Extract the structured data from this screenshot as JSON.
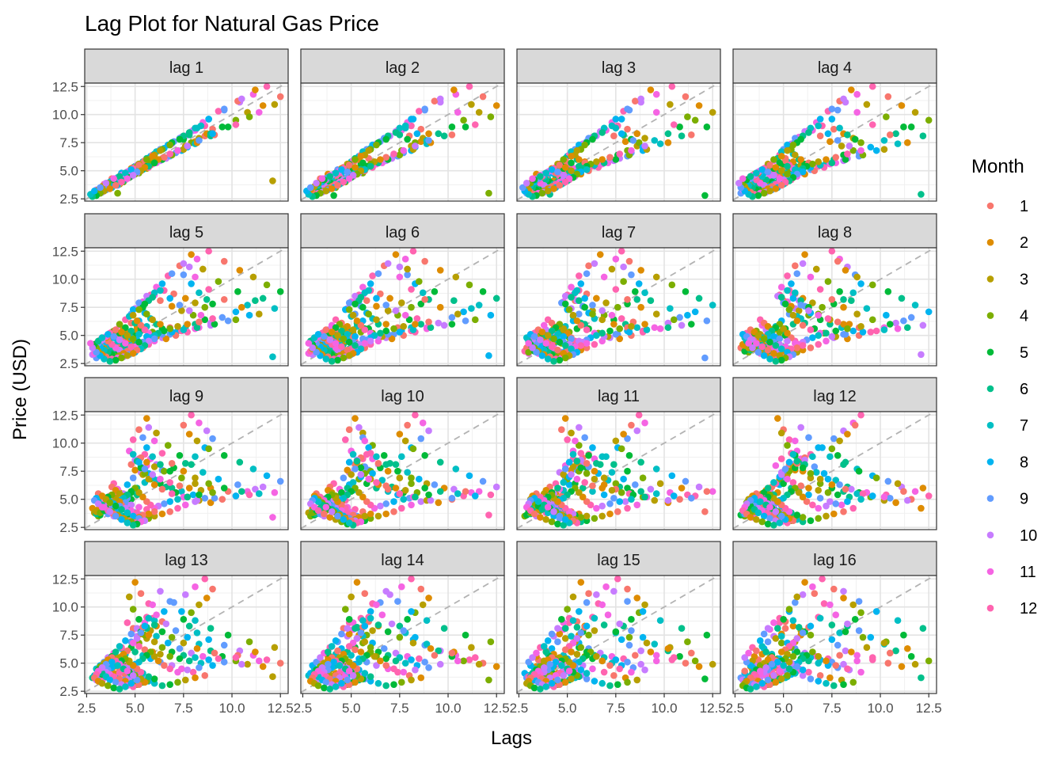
{
  "chart_data": {
    "type": "scatter",
    "title": "Lag Plot for Natural Gas Price",
    "xlabel": "Lags",
    "ylabel": "Price (USD)",
    "xlim": [
      2.4,
      12.9
    ],
    "ylim": [
      2.3,
      12.8
    ],
    "x_ticks": [
      2.5,
      5.0,
      7.5,
      10.0,
      12.5
    ],
    "x_tick_labels": [
      "2.5",
      "5.0",
      "7.5",
      "10.0",
      "12.5"
    ],
    "y_ticks": [
      2.5,
      5.0,
      7.5,
      10.0,
      12.5
    ],
    "y_tick_labels": [
      "2.5",
      "5.0",
      "7.5",
      "10.0",
      "12.5"
    ],
    "grid": true,
    "reference_line": "y = x, dashed grey",
    "panels": [
      "lag 1",
      "lag 2",
      "lag 3",
      "lag 4",
      "lag 5",
      "lag 6",
      "lag 7",
      "lag 8",
      "lag 9",
      "lag 10",
      "lag 11",
      "lag 12",
      "lag 13",
      "lag 14",
      "lag 15",
      "lag 16"
    ],
    "legend": {
      "title": "Month",
      "position": "right",
      "entries": [
        "1",
        "2",
        "3",
        "4",
        "5",
        "6",
        "7",
        "8",
        "9",
        "10",
        "11",
        "12"
      ],
      "colors": [
        "#F8766D",
        "#DE8C00",
        "#B79F00",
        "#7CAE00",
        "#00BA38",
        "#00C08B",
        "#00BFC4",
        "#00B4F0",
        "#619CFF",
        "#C77CFF",
        "#F564E3",
        "#FF64B0"
      ]
    },
    "series_month": [
      2,
      3,
      4,
      5,
      6,
      7,
      8,
      9,
      10,
      11,
      12,
      1,
      2,
      3,
      4,
      5,
      6,
      7,
      8,
      9,
      10,
      11,
      12,
      1,
      2,
      3,
      4,
      5,
      6,
      7,
      8,
      9,
      10,
      11,
      12,
      1,
      2,
      3,
      4,
      5,
      6,
      7,
      8,
      9,
      10,
      11,
      12,
      1,
      2,
      3,
      4,
      5,
      6,
      7,
      8,
      9,
      10,
      11,
      12,
      1,
      2,
      3,
      4,
      5,
      6,
      7,
      8,
      9,
      10,
      11,
      12,
      1,
      2,
      3,
      4,
      5,
      6,
      7,
      8,
      9,
      10,
      11,
      12,
      1,
      2,
      3,
      4,
      5,
      6,
      7,
      8,
      9,
      10,
      11,
      12,
      1,
      2,
      3,
      4,
      5,
      6,
      7,
      8,
      9,
      10,
      11,
      12,
      1,
      2,
      3,
      4,
      5,
      6,
      7,
      8,
      9,
      10,
      11,
      12,
      1,
      2,
      3,
      4,
      5,
      6,
      7,
      8,
      9,
      10,
      11,
      12,
      1,
      2,
      3,
      4,
      5,
      6,
      7,
      8,
      9,
      10,
      11,
      12,
      1,
      2,
      3,
      4,
      5,
      6,
      7,
      8,
      9,
      10,
      11,
      12,
      1,
      2,
      3,
      4,
      5,
      6,
      7,
      8,
      9,
      10,
      11,
      12,
      1,
      2,
      3,
      4,
      5,
      6,
      7,
      8,
      9,
      10,
      11,
      12,
      1,
      2,
      3,
      4,
      5,
      6,
      7,
      8,
      9,
      10,
      11,
      12,
      1,
      2,
      3,
      4,
      5,
      6,
      7,
      8,
      9,
      10,
      11,
      12,
      1,
      2,
      3,
      4,
      5,
      6,
      7,
      8,
      9,
      10,
      11,
      12,
      1,
      2,
      3,
      4,
      5,
      6,
      7,
      8,
      9,
      10,
      11,
      12,
      1,
      2,
      3,
      4,
      5,
      6,
      7,
      8,
      9,
      10,
      11,
      12,
      1,
      2,
      3,
      4,
      5,
      6,
      7,
      8,
      9,
      10,
      11,
      12,
      1,
      2,
      3,
      4,
      5,
      6,
      7,
      8,
      9,
      10,
      11,
      12,
      1,
      2,
      3,
      4,
      5,
      6,
      7,
      8,
      9,
      10,
      11,
      12,
      1,
      2,
      3,
      4,
      5,
      6,
      7,
      8,
      9,
      10,
      11
    ],
    "series_price": [
      12.1,
      4.1,
      3.0,
      2.8,
      2.9,
      3.1,
      3.2,
      3.0,
      3.3,
      3.4,
      3.6,
      3.9,
      4.2,
      3.8,
      3.5,
      3.6,
      3.7,
      3.9,
      4.1,
      3.7,
      3.5,
      3.4,
      3.8,
      4.3,
      4.7,
      4.4,
      4.0,
      4.2,
      4.5,
      4.3,
      4.8,
      5.1,
      4.9,
      4.6,
      4.9,
      5.3,
      5.6,
      5.2,
      4.8,
      5.0,
      5.4,
      5.8,
      6.3,
      6.9,
      7.4,
      8.0,
      8.6,
      8.1,
      7.6,
      7.2,
      6.8,
      6.4,
      6.0,
      5.7,
      5.4,
      5.1,
      4.8,
      4.5,
      4.2,
      3.9,
      3.7,
      3.5,
      3.3,
      3.1,
      3.0,
      3.2,
      3.4,
      3.6,
      3.9,
      4.3,
      4.6,
      4.4,
      4.1,
      3.9,
      3.8,
      4.0,
      4.2,
      4.5,
      4.8,
      5.1,
      5.5,
      5.9,
      6.4,
      6.1,
      5.8,
      5.5,
      5.3,
      5.6,
      6.0,
      6.5,
      7.0,
      7.6,
      8.1,
      8.6,
      9.0,
      8.7,
      8.3,
      7.9,
      7.5,
      7.8,
      8.2,
      8.8,
      9.6,
      10.4,
      11.1,
      11.8,
      12.5,
      11.6,
      10.8,
      10.2,
      9.5,
      8.9,
      8.3,
      7.7,
      7.1,
      6.6,
      6.1,
      5.7,
      5.3,
      5.0,
      4.7,
      4.9,
      5.2,
      5.6,
      6.1,
      6.7,
      7.3,
      7.9,
      8.5,
      9.3,
      10.3,
      11.2,
      12.2,
      10.9,
      9.8,
      8.9,
      8.1,
      7.4,
      6.8,
      6.3,
      5.9,
      5.6,
      5.4,
      5.7,
      6.0,
      6.4,
      6.9,
      7.5,
      8.1,
      8.8,
      9.6,
      10.5,
      11.4,
      10.2,
      9.1,
      8.2,
      7.5,
      6.9,
      6.4,
      6.0,
      5.7,
      5.5,
      5.3,
      5.1,
      4.9,
      5.2,
      5.5,
      5.9,
      6.3,
      6.8,
      7.3,
      7.8,
      8.4,
      9.0,
      8.3,
      7.7,
      7.2,
      6.8,
      6.5,
      6.2,
      6.0,
      5.8,
      5.6,
      5.4,
      5.2,
      5.0,
      4.8,
      4.6,
      4.4,
      4.2,
      4.5,
      4.8,
      5.2,
      5.6,
      6.0,
      5.7,
      5.4,
      5.1,
      4.9,
      4.7,
      4.5,
      4.3,
      4.1,
      3.9,
      3.7,
      3.5,
      3.4,
      3.6,
      3.8,
      4.1,
      4.4,
      4.7,
      5.0,
      5.3,
      5.1,
      4.9,
      4.7,
      4.5,
      4.3,
      4.2,
      4.0,
      3.8,
      3.6,
      3.5,
      3.7,
      3.9,
      4.2,
      4.5,
      4.8,
      5.1,
      5.4,
      5.2,
      5.0,
      4.8,
      4.6,
      4.4,
      4.2,
      4.0,
      3.8,
      3.6,
      3.4,
      3.2,
      3.1,
      3.3,
      3.5,
      3.7,
      4.0,
      4.3,
      4.6,
      4.9,
      5.2,
      5.5,
      5.3,
      5.0,
      4.7,
      4.4,
      4.1,
      3.8,
      3.5,
      3.3,
      3.1,
      3.0,
      2.9,
      3.1,
      3.3,
      3.6,
      3.9,
      4.2,
      4.5,
      4.8,
      5.1,
      4.9,
      4.6,
      4.3,
      4.0,
      3.7,
      3.4,
      3.2,
      3.0,
      2.8,
      2.7,
      2.9,
      3.2,
      3.5,
      3.9,
      4.3
    ]
  }
}
